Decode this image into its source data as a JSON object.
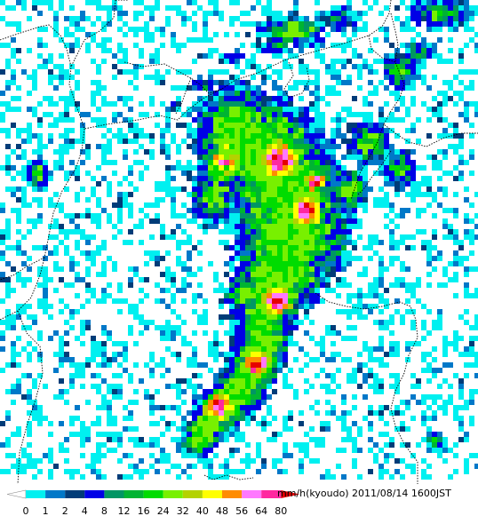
{
  "legend": {
    "unit_label": "mm/h(kyoudo)",
    "timestamp": "2011/08/14 1600JST",
    "ticks": [
      "0",
      "1",
      "2",
      "4",
      "8",
      "12",
      "16",
      "24",
      "32",
      "40",
      "48",
      "56",
      "64",
      "80"
    ],
    "colors": [
      "#ffffff",
      "#00f0f0",
      "#0078c8",
      "#003c78",
      "#0000e6",
      "#009664",
      "#00b432",
      "#00dc00",
      "#78f000",
      "#b4d200",
      "#ffff00",
      "#ff8c00",
      "#ff78ff",
      "#ff28a0",
      "#e60000"
    ]
  },
  "map": {
    "background": "#ffffff",
    "boundary_color": "#000000"
  }
}
